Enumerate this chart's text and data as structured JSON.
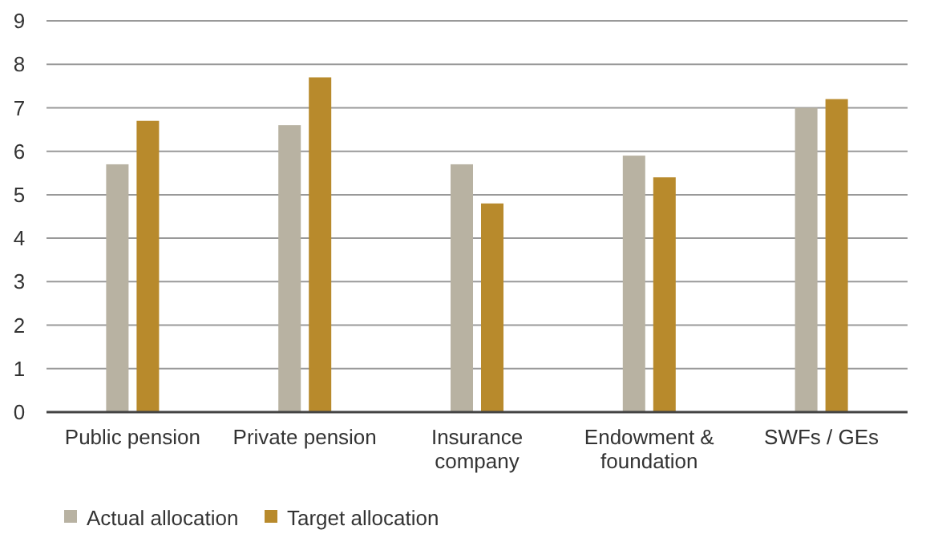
{
  "chart_data": {
    "type": "bar",
    "categories": [
      "Public pension",
      "Private pension",
      "Insurance company",
      "Endowment & foundation",
      "SWFs / GEs"
    ],
    "series": [
      {
        "name": "Actual allocation",
        "color": "#b8b2a2",
        "values": [
          5.7,
          6.6,
          5.7,
          5.9,
          7.0
        ]
      },
      {
        "name": "Target allocation",
        "color": "#b88a2c",
        "values": [
          6.7,
          7.7,
          4.8,
          5.4,
          7.2
        ]
      }
    ],
    "ylim": [
      0,
      9
    ],
    "yticks": [
      0,
      1,
      2,
      3,
      4,
      5,
      6,
      7,
      8,
      9
    ],
    "grid": "y",
    "legend": "bottom left"
  }
}
